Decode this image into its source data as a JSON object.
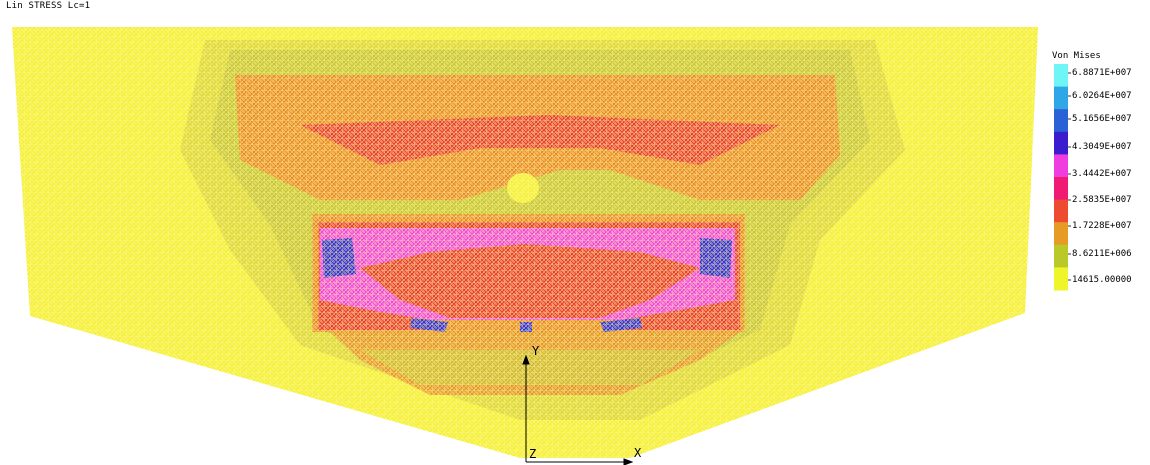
{
  "title": "Lin STRESS Lc=1",
  "legend": {
    "title": "Von Mises",
    "labels": [
      "6.8871E+007",
      "6.0264E+007",
      "5.1656E+007",
      "4.3049E+007",
      "3.4442E+007",
      "2.5835E+007",
      "1.7228E+007",
      "8.6211E+006",
      "14615.00000"
    ],
    "colors": [
      "#6ff5f5",
      "#2fa6e6",
      "#2a61d6",
      "#3b1ccf",
      "#f03de0",
      "#f01c74",
      "#ee4a32",
      "#e69b25",
      "#b9c92a",
      "#eef52a"
    ]
  },
  "axes": {
    "y": "Y",
    "x": "X",
    "z": "Z"
  },
  "colors": {
    "background": "#ffffff",
    "base": "#f4f02c",
    "olive": "#c9c72b",
    "orange": "#ea8e1f",
    "red": "#e8442a",
    "pink": "#f04ad6",
    "blue": "#3b36c8",
    "mesh": "#fff7a8"
  }
}
